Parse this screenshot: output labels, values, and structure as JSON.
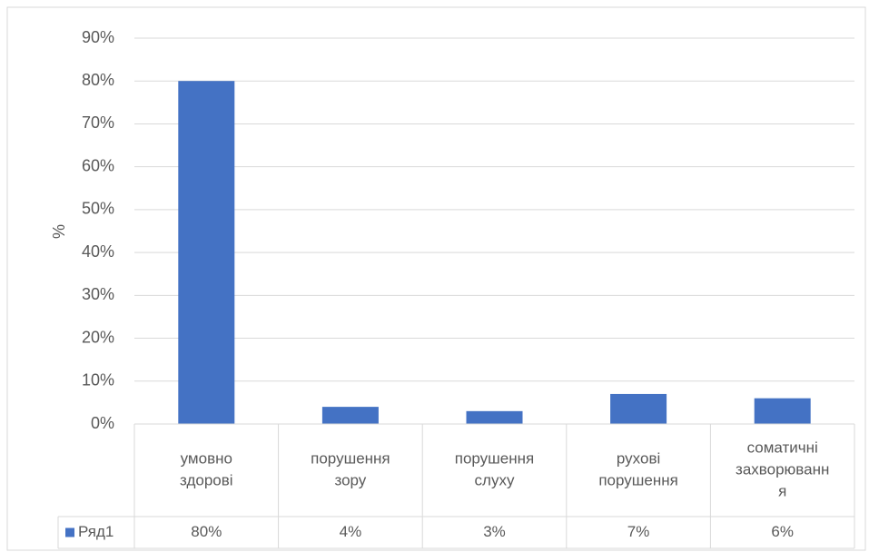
{
  "chart_data": {
    "type": "bar",
    "categories": [
      [
        "умовно",
        "здорові"
      ],
      [
        "порушення",
        "зору"
      ],
      [
        "порушення",
        "слуху"
      ],
      [
        "рухові",
        "порушення"
      ],
      [
        "соматичні",
        "захворюванн",
        "я"
      ]
    ],
    "series": [
      {
        "name": "Ряд1",
        "values": [
          80,
          4,
          3,
          7,
          6
        ],
        "labels": [
          "80%",
          "4%",
          "3%",
          "7%",
          "6%"
        ],
        "color": "#4472c4"
      }
    ],
    "ylabel": "%",
    "yticks": [
      "0%",
      "10%",
      "20%",
      "30%",
      "40%",
      "50%",
      "60%",
      "70%",
      "80%",
      "90%"
    ],
    "ylim": [
      0,
      90
    ],
    "grid": true,
    "legend": "data-table-left",
    "colors": {
      "bar": "#4472c4",
      "grid": "#d9d9d9",
      "text": "#595959",
      "border": "#d9d9d9"
    }
  }
}
